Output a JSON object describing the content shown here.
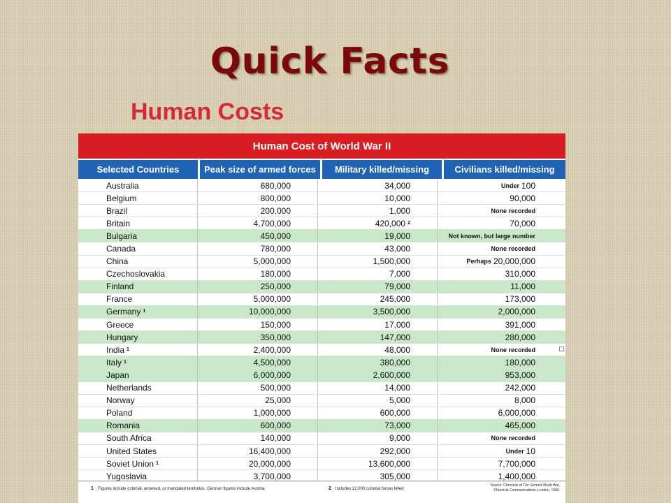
{
  "slide": {
    "title": "Quick Facts",
    "subtitle": "Human Costs"
  },
  "table": {
    "title": "Human Cost of World War II",
    "columns": [
      "Selected Countries",
      "Peak size of armed forces",
      "Military killed/missing",
      "Civilians killed/missing"
    ],
    "rows": [
      {
        "country": "Australia",
        "sup": "",
        "armed": "680,000",
        "military": "34,000",
        "military_sup": "",
        "civ_prefix": "Under",
        "civ_value": "100",
        "green": false
      },
      {
        "country": "Belgium",
        "sup": "",
        "armed": "800,000",
        "military": "10,000",
        "military_sup": "",
        "civ_prefix": "",
        "civ_value": "90,000",
        "green": false
      },
      {
        "country": "Brazil",
        "sup": "",
        "armed": "200,000",
        "military": "1,000",
        "military_sup": "",
        "civ_prefix": "",
        "civ_value": "None recorded",
        "green": false
      },
      {
        "country": "Britain",
        "sup": "",
        "armed": "4,700,000",
        "military": "420,000",
        "military_sup": "2",
        "civ_prefix": "",
        "civ_value": "70,000",
        "green": false
      },
      {
        "country": "Bulgaria",
        "sup": "",
        "armed": "450,000",
        "military": "19,000",
        "military_sup": "",
        "civ_prefix": "",
        "civ_value": "Not known, but large number",
        "green": true
      },
      {
        "country": "Canada",
        "sup": "",
        "armed": "780,000",
        "military": "43,000",
        "military_sup": "",
        "civ_prefix": "",
        "civ_value": "None recorded",
        "green": false
      },
      {
        "country": "China",
        "sup": "",
        "armed": "5,000,000",
        "military": "1,500,000",
        "military_sup": "",
        "civ_prefix": "Perhaps",
        "civ_value": "20,000,000",
        "green": false
      },
      {
        "country": "Czechoslovakia",
        "sup": "",
        "armed": "180,000",
        "military": "7,000",
        "military_sup": "",
        "civ_prefix": "",
        "civ_value": "310,000",
        "green": false
      },
      {
        "country": "Finland",
        "sup": "",
        "armed": "250,000",
        "military": "79,000",
        "military_sup": "",
        "civ_prefix": "",
        "civ_value": "11,000",
        "green": true
      },
      {
        "country": "France",
        "sup": "",
        "armed": "5,000,000",
        "military": "245,000",
        "military_sup": "",
        "civ_prefix": "",
        "civ_value": "173,000",
        "green": false
      },
      {
        "country": "Germany",
        "sup": "1",
        "armed": "10,000,000",
        "military": "3,500,000",
        "military_sup": "",
        "civ_prefix": "",
        "civ_value": "2,000,000",
        "green": true
      },
      {
        "country": "Greece",
        "sup": "",
        "armed": "150,000",
        "military": "17,000",
        "military_sup": "",
        "civ_prefix": "",
        "civ_value": "391,000",
        "green": false
      },
      {
        "country": "Hungary",
        "sup": "",
        "armed": "350,000",
        "military": "147,000",
        "military_sup": "",
        "civ_prefix": "",
        "civ_value": "280,000",
        "green": true
      },
      {
        "country": "India",
        "sup": "1",
        "armed": "2,400,000",
        "military": "48,000",
        "military_sup": "",
        "civ_prefix": "",
        "civ_value": "None recorded",
        "green": false
      },
      {
        "country": "Italy",
        "sup": "1",
        "armed": "4,500,000",
        "military": "380,000",
        "military_sup": "",
        "civ_prefix": "",
        "civ_value": "180,000",
        "green": true
      },
      {
        "country": "Japan",
        "sup": "",
        "armed": "6,000,000",
        "military": "2,600,000",
        "military_sup": "",
        "civ_prefix": "",
        "civ_value": "953,000",
        "green": true
      },
      {
        "country": "Netherlands",
        "sup": "",
        "armed": "500,000",
        "military": "14,000",
        "military_sup": "",
        "civ_prefix": "",
        "civ_value": "242,000",
        "green": false
      },
      {
        "country": "Norway",
        "sup": "",
        "armed": "25,000",
        "military": "5,000",
        "military_sup": "",
        "civ_prefix": "",
        "civ_value": "8,000",
        "green": false
      },
      {
        "country": "Poland",
        "sup": "",
        "armed": "1,000,000",
        "military": "600,000",
        "military_sup": "",
        "civ_prefix": "",
        "civ_value": "6,000,000",
        "green": false
      },
      {
        "country": "Romania",
        "sup": "",
        "armed": "600,000",
        "military": "73,000",
        "military_sup": "",
        "civ_prefix": "",
        "civ_value": "465,000",
        "green": true
      },
      {
        "country": "South Africa",
        "sup": "",
        "armed": "140,000",
        "military": "9,000",
        "military_sup": "",
        "civ_prefix": "",
        "civ_value": "None recorded",
        "green": false
      },
      {
        "country": "United States",
        "sup": "",
        "armed": "16,400,000",
        "military": "292,000",
        "military_sup": "",
        "civ_prefix": "Under",
        "civ_value": "10",
        "green": false
      },
      {
        "country": "Soviet Union",
        "sup": "1",
        "armed": "20,000,000",
        "military": "13,600,000",
        "military_sup": "",
        "civ_prefix": "",
        "civ_value": "7,700,000",
        "green": false
      },
      {
        "country": "Yugoslavia",
        "sup": "",
        "armed": "3,700,000",
        "military": "305,000",
        "military_sup": "",
        "civ_prefix": "",
        "civ_value": "1,400,000",
        "green": false
      }
    ],
    "footnotes": {
      "note1_num": "1",
      "note1": "Figures include colonial, annexed, or mandated territories. German figures include Austria.",
      "note2_num": "2",
      "note2": "Includes 22,000 colonial forces killed",
      "source_line1": "Source: Chronicle of The Second World War,",
      "source_line2": "Chronicle Communications, London, 1990."
    }
  }
}
